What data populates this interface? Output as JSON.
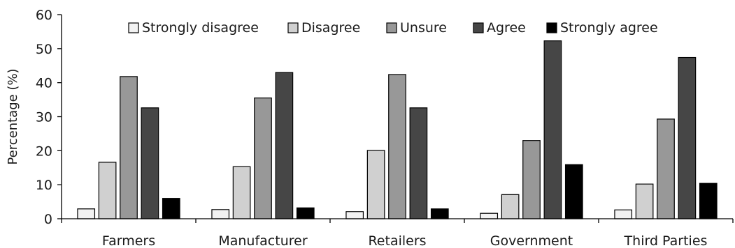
{
  "chart_data": {
    "type": "bar",
    "title": "",
    "xlabel": "",
    "ylabel": "Percentage (%)",
    "ylim": [
      0,
      60
    ],
    "yticks": [
      0,
      10,
      20,
      30,
      40,
      50,
      60
    ],
    "grid": false,
    "legend_position": "top",
    "categories": [
      "Farmers",
      "Manufacturer",
      "Retailers",
      "Government",
      "Third Parties"
    ],
    "series": [
      {
        "name": "Strongly disagree",
        "color": "#f2f2f2",
        "values": [
          2.9,
          2.7,
          2.1,
          1.6,
          2.6
        ]
      },
      {
        "name": "Disagree",
        "color": "#d0d0d0",
        "values": [
          16.6,
          15.3,
          20.1,
          7.1,
          10.2
        ]
      },
      {
        "name": "Unsure",
        "color": "#989898",
        "values": [
          41.8,
          35.5,
          42.4,
          23.0,
          29.3
        ]
      },
      {
        "name": "Agree",
        "color": "#464646",
        "values": [
          32.6,
          43.0,
          32.6,
          52.3,
          47.4
        ]
      },
      {
        "name": "Strongly agree",
        "color": "#000000",
        "values": [
          6.0,
          3.2,
          2.9,
          15.9,
          10.4
        ]
      }
    ]
  }
}
